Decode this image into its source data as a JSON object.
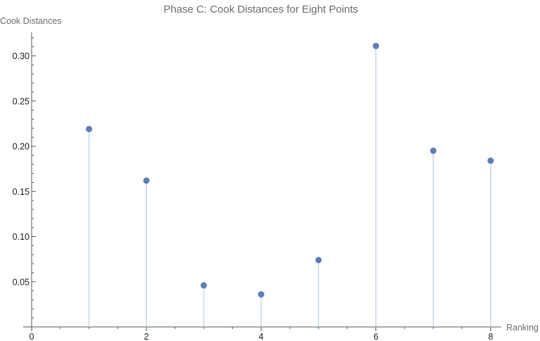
{
  "chart_data": {
    "type": "scatter",
    "style": "stem",
    "title": "Phase C: Cook Distances for Eight Points",
    "xlabel": "Ranking",
    "ylabel": "Cook Distances",
    "xlim": [
      0,
      8.2
    ],
    "ylim": [
      0,
      0.325
    ],
    "x_ticks": [
      0,
      2,
      4,
      6,
      8
    ],
    "x_tick_labels": [
      "0",
      "2",
      "4",
      "6",
      "8"
    ],
    "y_ticks": [
      0.05,
      0.1,
      0.15,
      0.2,
      0.25,
      0.3
    ],
    "y_tick_labels": [
      "0.05",
      "0.10",
      "0.15",
      "0.20",
      "0.25",
      "0.30"
    ],
    "x": [
      1,
      2,
      3,
      4,
      5,
      6,
      7,
      8
    ],
    "y": [
      0.219,
      0.162,
      0.046,
      0.036,
      0.074,
      0.311,
      0.195,
      0.184
    ],
    "point_color": "#5a7fb8",
    "stem_color": "#c5d5e6",
    "grid": false
  }
}
